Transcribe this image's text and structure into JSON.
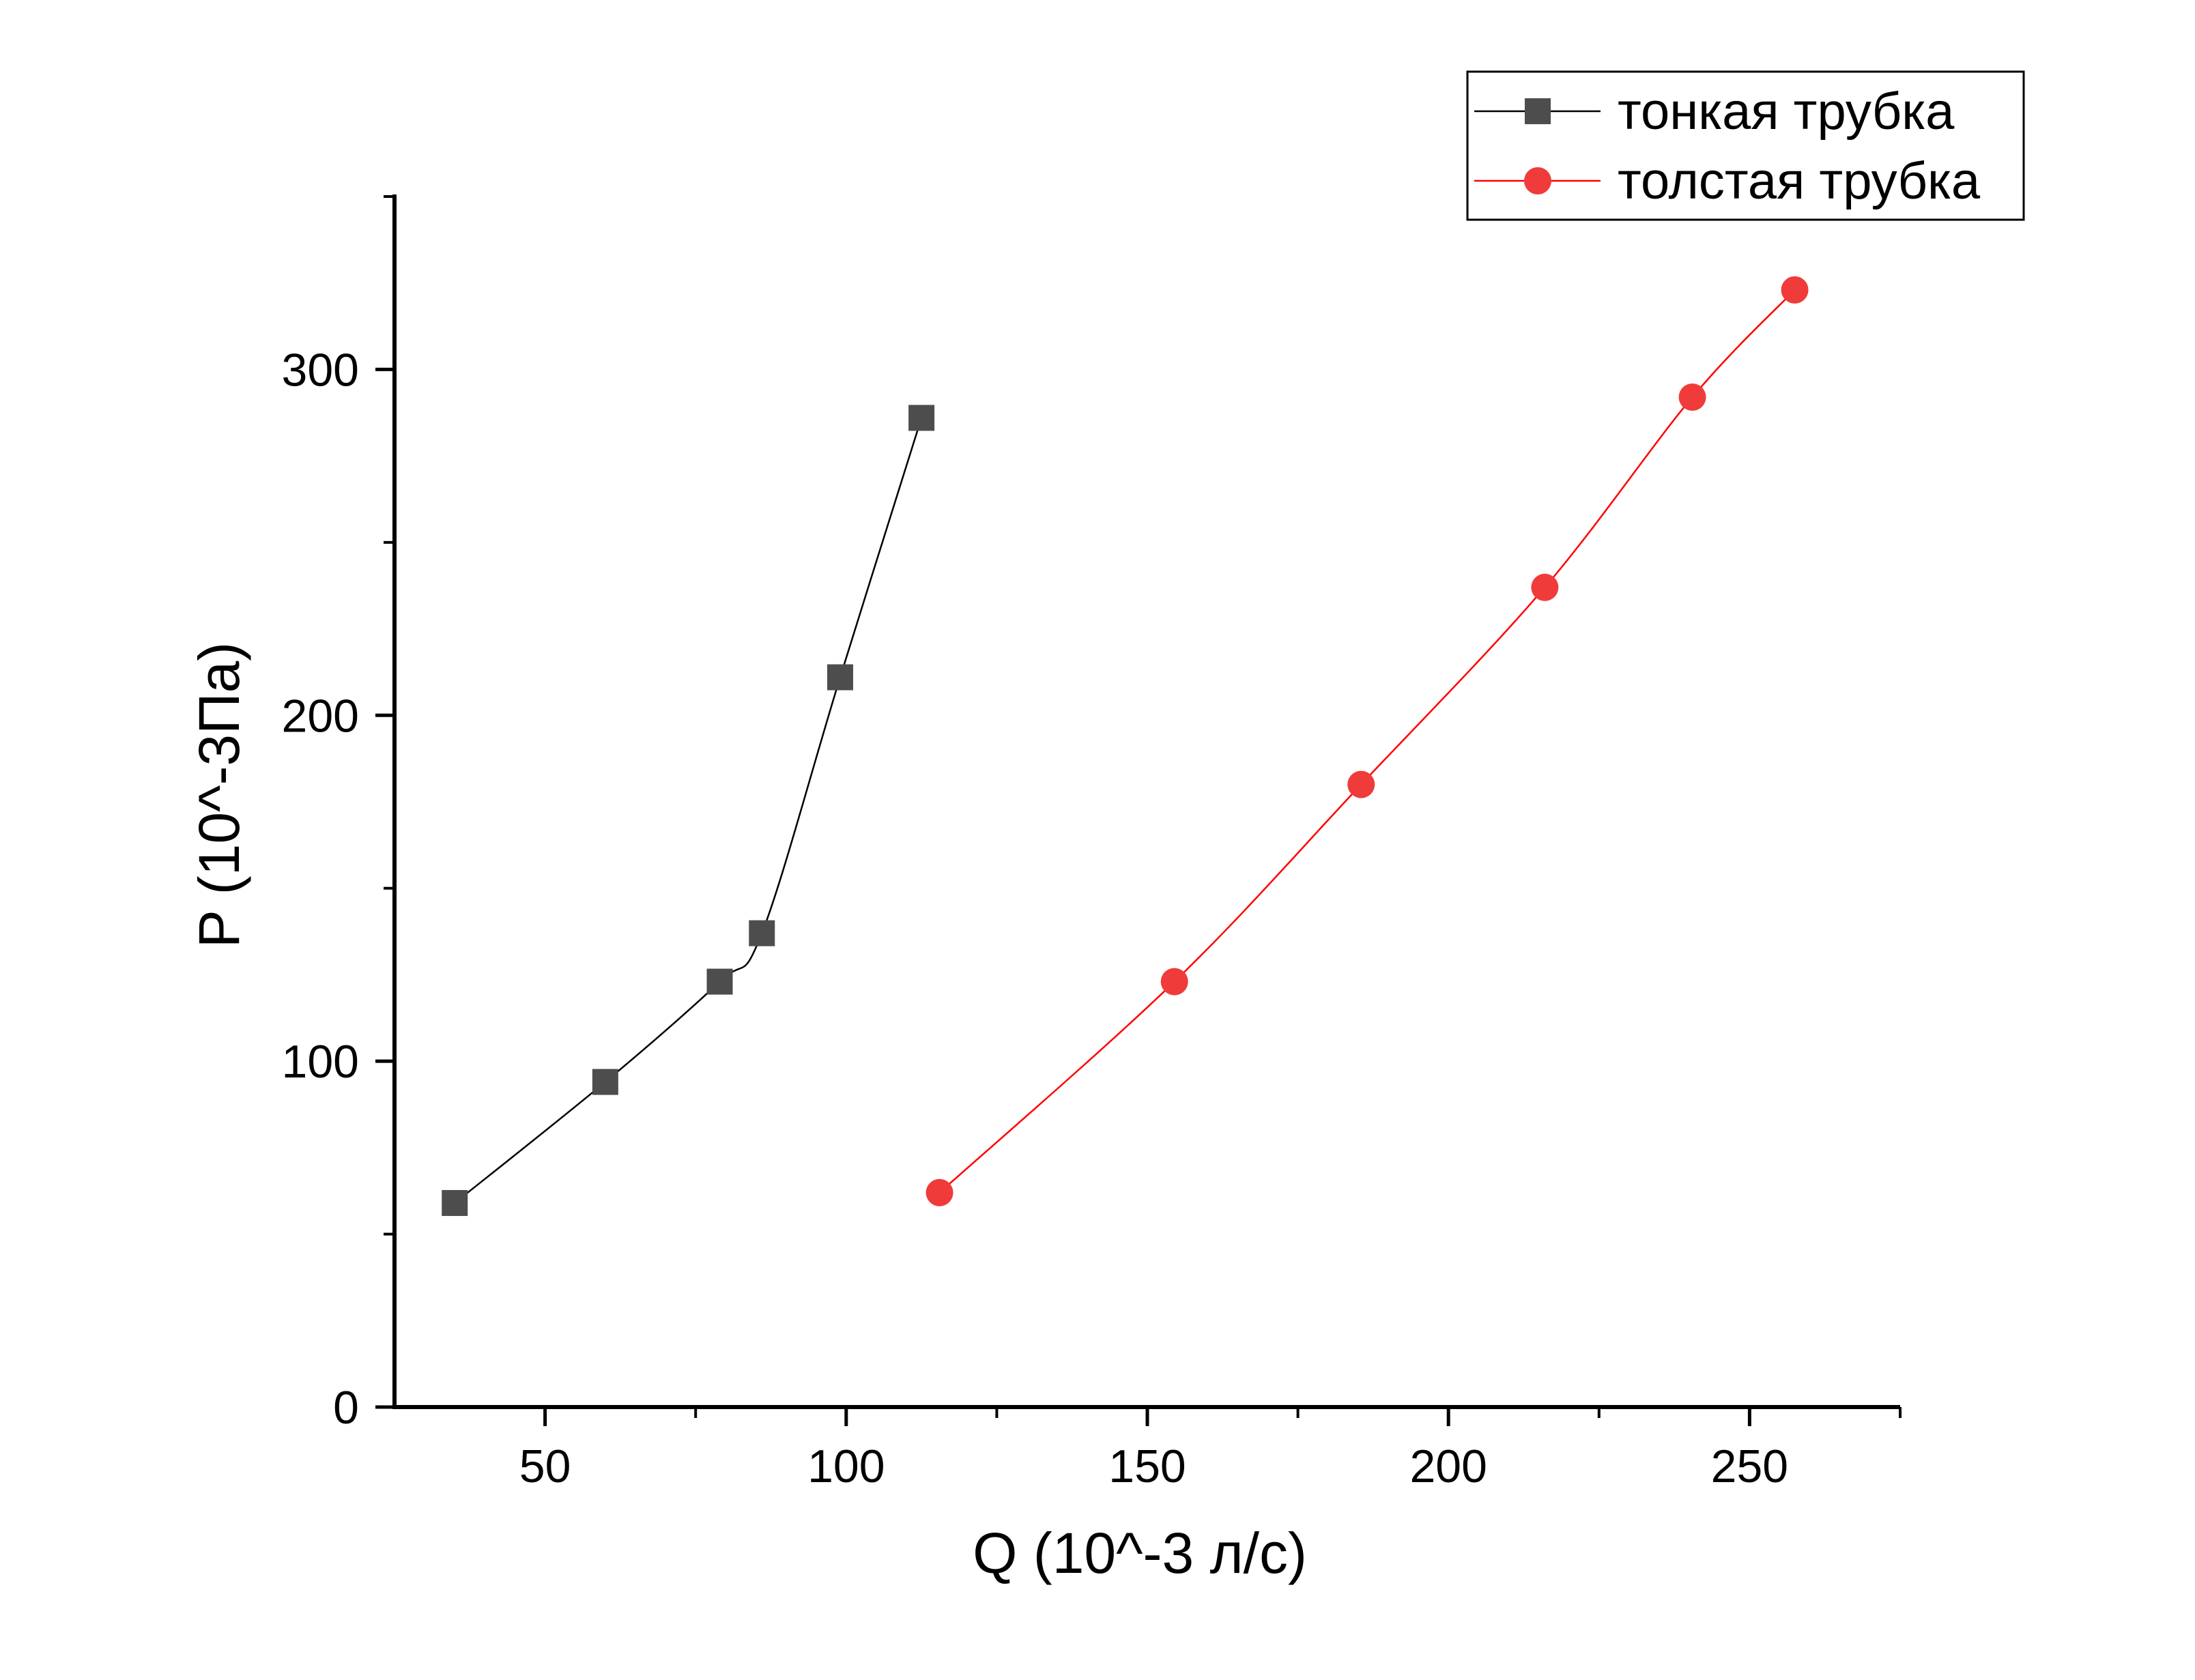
{
  "chart_data": {
    "type": "line",
    "title": "",
    "xlabel": "Q (10^-3 л/с)",
    "ylabel": "P (10^-3Па)",
    "xlim": [
      25,
      275
    ],
    "ylim": [
      0,
      350
    ],
    "x_ticks": [
      50,
      100,
      150,
      200,
      250
    ],
    "x_minor_ticks": [
      75,
      125,
      175,
      225,
      275
    ],
    "y_ticks": [
      0,
      100,
      200,
      300
    ],
    "y_minor_ticks": [
      50,
      150,
      250,
      350
    ],
    "x_tick_labels": [
      "50",
      "100",
      "150",
      "200",
      "250"
    ],
    "y_tick_labels": [
      "0",
      "100",
      "200",
      "300"
    ],
    "grid": false,
    "legend_position": "top-right",
    "series": [
      {
        "name": "тонкая трубка",
        "color": "#4d4d4d",
        "line_color": "#000000",
        "marker": "square",
        "x": [
          35,
          60,
          79,
          86,
          99,
          112.5
        ],
        "y": [
          59,
          94,
          123,
          137,
          211,
          286
        ]
      },
      {
        "name": "толстая трубка",
        "color": "#f03b3b",
        "line_color": "#ff0000",
        "marker": "circle",
        "x": [
          115.5,
          154.5,
          185.5,
          216,
          240.5,
          257.5
        ],
        "y": [
          62,
          123,
          180,
          237,
          292,
          323
        ]
      }
    ]
  }
}
